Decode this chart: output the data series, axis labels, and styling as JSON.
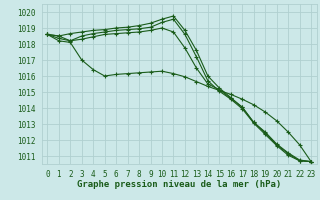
{
  "x": [
    0,
    1,
    2,
    3,
    4,
    5,
    6,
    7,
    8,
    9,
    10,
    11,
    12,
    13,
    14,
    15,
    16,
    17,
    18,
    19,
    20,
    21,
    22,
    23
  ],
  "line_color": "#1a5c1a",
  "bg_color": "#cce8e8",
  "grid_color": "#b0d0d0",
  "ylabel_values": [
    1011,
    1012,
    1013,
    1014,
    1015,
    1016,
    1017,
    1018,
    1019,
    1020
  ],
  "xlabel": "Graphe pression niveau de la mer (hPa)",
  "xlim": [
    -0.5,
    23.5
  ],
  "ylim": [
    1010.5,
    1020.5
  ],
  "xlabel_fontsize": 6.5,
  "tick_fontsize": 5.5,
  "line1": [
    1018.6,
    1018.5,
    1018.65,
    1018.75,
    1018.85,
    1018.9,
    1019.0,
    1019.05,
    1019.15,
    1019.3,
    1019.55,
    1019.75,
    1018.85,
    1017.6,
    1016.0,
    1015.25,
    1014.65,
    1014.05,
    1013.1,
    1012.5,
    1011.75,
    1011.2,
    1010.75,
    1010.65
  ],
  "line2": [
    1018.6,
    1018.5,
    1018.2,
    1018.5,
    1018.65,
    1018.75,
    1018.85,
    1018.9,
    1018.95,
    1019.05,
    1019.35,
    1019.55,
    1018.6,
    1017.2,
    1015.7,
    1015.05,
    1014.55,
    1013.95,
    1013.05,
    1012.35,
    1011.65,
    1011.05,
    1010.7,
    1010.65
  ],
  "line3": [
    1018.6,
    1018.2,
    1018.1,
    1017.0,
    1016.4,
    1016.0,
    1016.1,
    1016.15,
    1016.2,
    1016.25,
    1016.3,
    1016.15,
    1015.95,
    1015.65,
    1015.35,
    1015.1,
    1014.85,
    1014.55,
    1014.2,
    1013.75,
    1013.2,
    1012.5,
    1011.7,
    1010.65
  ],
  "line4": [
    1018.6,
    1018.35,
    1018.2,
    1018.3,
    1018.45,
    1018.6,
    1018.65,
    1018.7,
    1018.75,
    1018.85,
    1019.0,
    1018.75,
    1017.75,
    1016.5,
    1015.5,
    1015.15,
    1014.6,
    1014.05,
    1013.1,
    1012.45,
    1011.7,
    1011.15,
    1010.7,
    1010.65
  ]
}
